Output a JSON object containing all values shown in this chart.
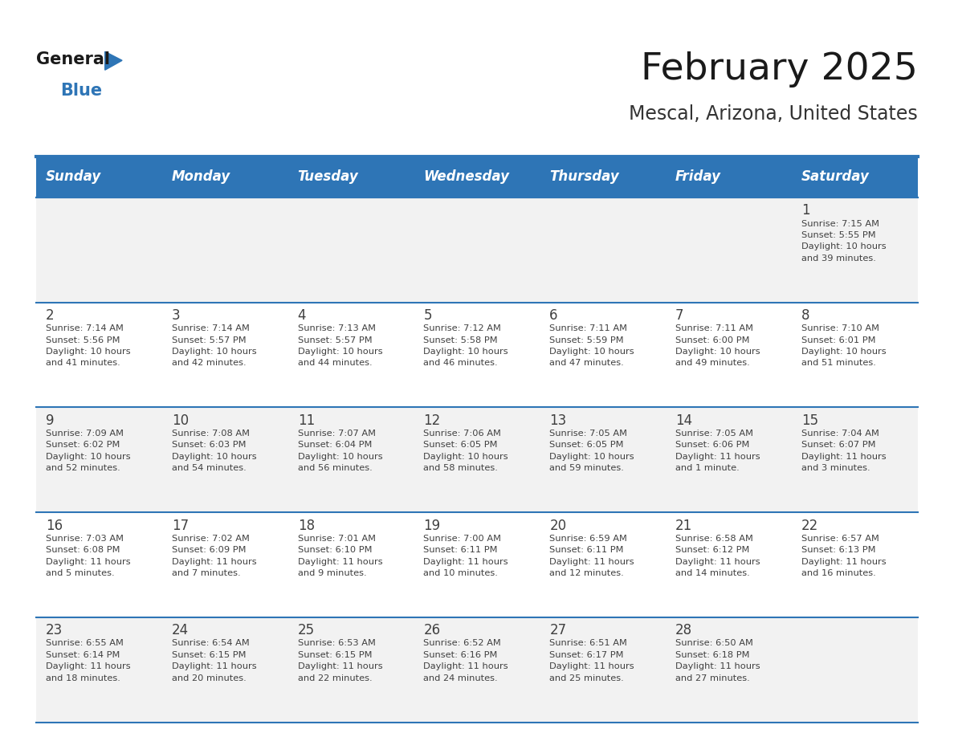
{
  "title": "February 2025",
  "subtitle": "Mescal, Arizona, United States",
  "days_of_week": [
    "Sunday",
    "Monday",
    "Tuesday",
    "Wednesday",
    "Thursday",
    "Friday",
    "Saturday"
  ],
  "header_bg": "#2E75B6",
  "header_text": "#FFFFFF",
  "row_bg_odd": "#F2F2F2",
  "row_bg_even": "#FFFFFF",
  "separator_color": "#2E75B6",
  "day_number_color": "#404040",
  "cell_text_color": "#404040",
  "title_color": "#1a1a1a",
  "subtitle_color": "#333333",
  "logo_general_color": "#1a1a1a",
  "logo_blue_color": "#2E75B6",
  "calendar_data": [
    [
      null,
      null,
      null,
      null,
      null,
      null,
      {
        "day": 1,
        "sunrise": "7:15 AM",
        "sunset": "5:55 PM",
        "daylight": "10 hours\nand 39 minutes."
      }
    ],
    [
      {
        "day": 2,
        "sunrise": "7:14 AM",
        "sunset": "5:56 PM",
        "daylight": "10 hours\nand 41 minutes."
      },
      {
        "day": 3,
        "sunrise": "7:14 AM",
        "sunset": "5:57 PM",
        "daylight": "10 hours\nand 42 minutes."
      },
      {
        "day": 4,
        "sunrise": "7:13 AM",
        "sunset": "5:57 PM",
        "daylight": "10 hours\nand 44 minutes."
      },
      {
        "day": 5,
        "sunrise": "7:12 AM",
        "sunset": "5:58 PM",
        "daylight": "10 hours\nand 46 minutes."
      },
      {
        "day": 6,
        "sunrise": "7:11 AM",
        "sunset": "5:59 PM",
        "daylight": "10 hours\nand 47 minutes."
      },
      {
        "day": 7,
        "sunrise": "7:11 AM",
        "sunset": "6:00 PM",
        "daylight": "10 hours\nand 49 minutes."
      },
      {
        "day": 8,
        "sunrise": "7:10 AM",
        "sunset": "6:01 PM",
        "daylight": "10 hours\nand 51 minutes."
      }
    ],
    [
      {
        "day": 9,
        "sunrise": "7:09 AM",
        "sunset": "6:02 PM",
        "daylight": "10 hours\nand 52 minutes."
      },
      {
        "day": 10,
        "sunrise": "7:08 AM",
        "sunset": "6:03 PM",
        "daylight": "10 hours\nand 54 minutes."
      },
      {
        "day": 11,
        "sunrise": "7:07 AM",
        "sunset": "6:04 PM",
        "daylight": "10 hours\nand 56 minutes."
      },
      {
        "day": 12,
        "sunrise": "7:06 AM",
        "sunset": "6:05 PM",
        "daylight": "10 hours\nand 58 minutes."
      },
      {
        "day": 13,
        "sunrise": "7:05 AM",
        "sunset": "6:05 PM",
        "daylight": "10 hours\nand 59 minutes."
      },
      {
        "day": 14,
        "sunrise": "7:05 AM",
        "sunset": "6:06 PM",
        "daylight": "11 hours\nand 1 minute."
      },
      {
        "day": 15,
        "sunrise": "7:04 AM",
        "sunset": "6:07 PM",
        "daylight": "11 hours\nand 3 minutes."
      }
    ],
    [
      {
        "day": 16,
        "sunrise": "7:03 AM",
        "sunset": "6:08 PM",
        "daylight": "11 hours\nand 5 minutes."
      },
      {
        "day": 17,
        "sunrise": "7:02 AM",
        "sunset": "6:09 PM",
        "daylight": "11 hours\nand 7 minutes."
      },
      {
        "day": 18,
        "sunrise": "7:01 AM",
        "sunset": "6:10 PM",
        "daylight": "11 hours\nand 9 minutes."
      },
      {
        "day": 19,
        "sunrise": "7:00 AM",
        "sunset": "6:11 PM",
        "daylight": "11 hours\nand 10 minutes."
      },
      {
        "day": 20,
        "sunrise": "6:59 AM",
        "sunset": "6:11 PM",
        "daylight": "11 hours\nand 12 minutes."
      },
      {
        "day": 21,
        "sunrise": "6:58 AM",
        "sunset": "6:12 PM",
        "daylight": "11 hours\nand 14 minutes."
      },
      {
        "day": 22,
        "sunrise": "6:57 AM",
        "sunset": "6:13 PM",
        "daylight": "11 hours\nand 16 minutes."
      }
    ],
    [
      {
        "day": 23,
        "sunrise": "6:55 AM",
        "sunset": "6:14 PM",
        "daylight": "11 hours\nand 18 minutes."
      },
      {
        "day": 24,
        "sunrise": "6:54 AM",
        "sunset": "6:15 PM",
        "daylight": "11 hours\nand 20 minutes."
      },
      {
        "day": 25,
        "sunrise": "6:53 AM",
        "sunset": "6:15 PM",
        "daylight": "11 hours\nand 22 minutes."
      },
      {
        "day": 26,
        "sunrise": "6:52 AM",
        "sunset": "6:16 PM",
        "daylight": "11 hours\nand 24 minutes."
      },
      {
        "day": 27,
        "sunrise": "6:51 AM",
        "sunset": "6:17 PM",
        "daylight": "11 hours\nand 25 minutes."
      },
      {
        "day": 28,
        "sunrise": "6:50 AM",
        "sunset": "6:18 PM",
        "daylight": "11 hours\nand 27 minutes."
      },
      null
    ]
  ]
}
